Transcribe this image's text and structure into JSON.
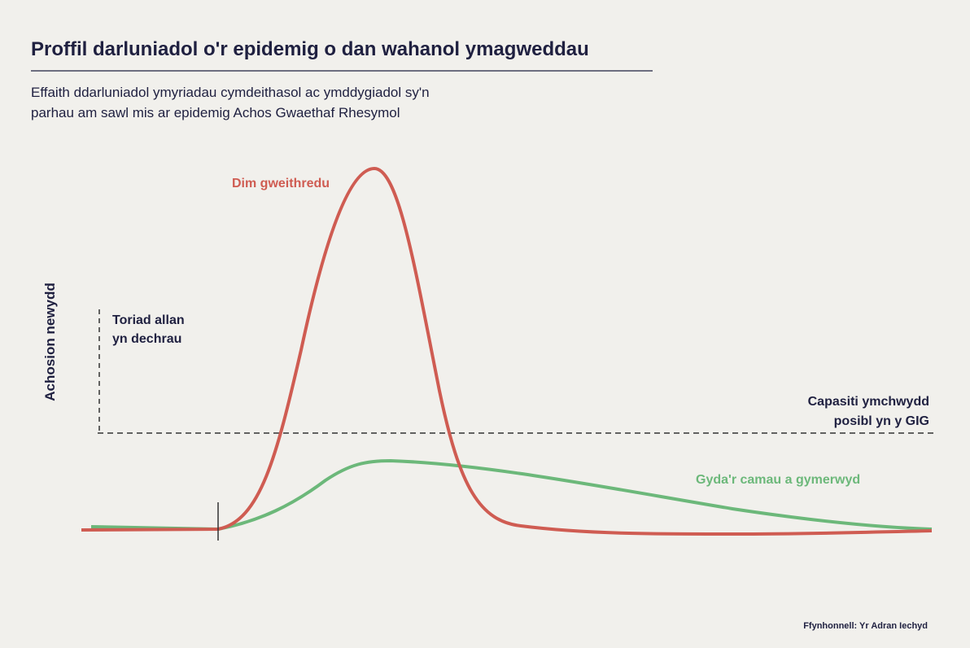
{
  "title": "Proffil darluniadol o'r epidemig o dan wahanol ymagweddau",
  "subtitle": [
    "Effaith ddarluniadol ymyriadau cymdeithasol ac ymddygiadol sy'n",
    "parhau am sawl mis ar epidemig Achos Gwaethaf Rhesymol"
  ],
  "y_axis_label": "Achosion newydd",
  "annotations": {
    "no_action": "Dim gweithredu",
    "outbreak": [
      "Toriad allan",
      "yn dechrau"
    ],
    "capacity": [
      "Capasiti ymchwydd",
      "posibl yn y GIG"
    ],
    "measures": "Gyda'r camau a gymerwyd"
  },
  "source": "Ffynhonnell: Yr Adran Iechyd"
}
